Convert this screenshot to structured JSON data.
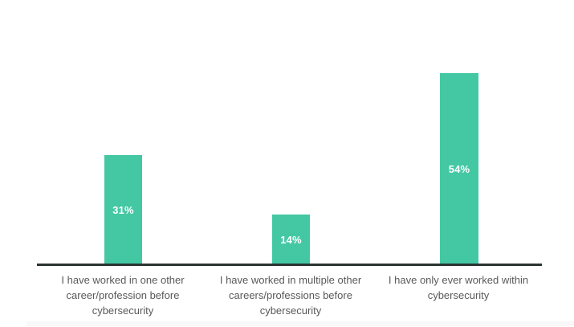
{
  "chart_data": {
    "type": "bar",
    "categories": [
      "I have worked in one other career/profession before cybersecurity",
      "I have worked in multiple other careers/professions before cybersecurity",
      "I have only ever worked within cybersecurity"
    ],
    "values": [
      31,
      14,
      54
    ],
    "value_labels": [
      "31%",
      "14%",
      "54%"
    ],
    "title": "",
    "xlabel": "",
    "ylabel": "",
    "ylim": [
      0,
      60
    ],
    "grid": false,
    "legend": "none",
    "value_label_position": "inside-center",
    "colors": {
      "bar": "#44c8a3",
      "value_label": "#ffffff",
      "category_label": "#595959",
      "axis_line": "#2a332e",
      "background": "#ffffff"
    }
  }
}
